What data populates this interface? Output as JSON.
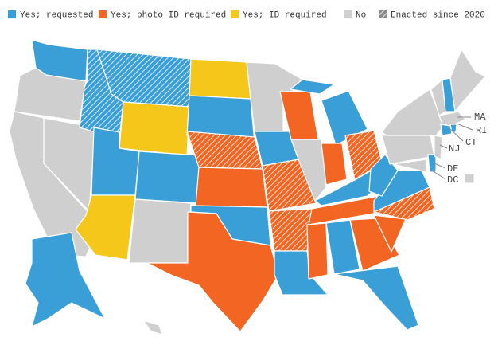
{
  "legend": [
    {
      "label": "Yes; requested",
      "color": "#3b9fd7"
    },
    {
      "label": "Yes; photo ID required",
      "color": "#f26522"
    },
    {
      "label": "Yes; ID required",
      "color": "#f5c71a"
    },
    {
      "label": "No",
      "color": "#cfcfcf"
    },
    {
      "label": "Enacted since 2020",
      "color": "#8a8a8a"
    }
  ],
  "state_labels": [
    "MA",
    "RI",
    "CT",
    "NJ",
    "DE",
    "DC"
  ]
}
